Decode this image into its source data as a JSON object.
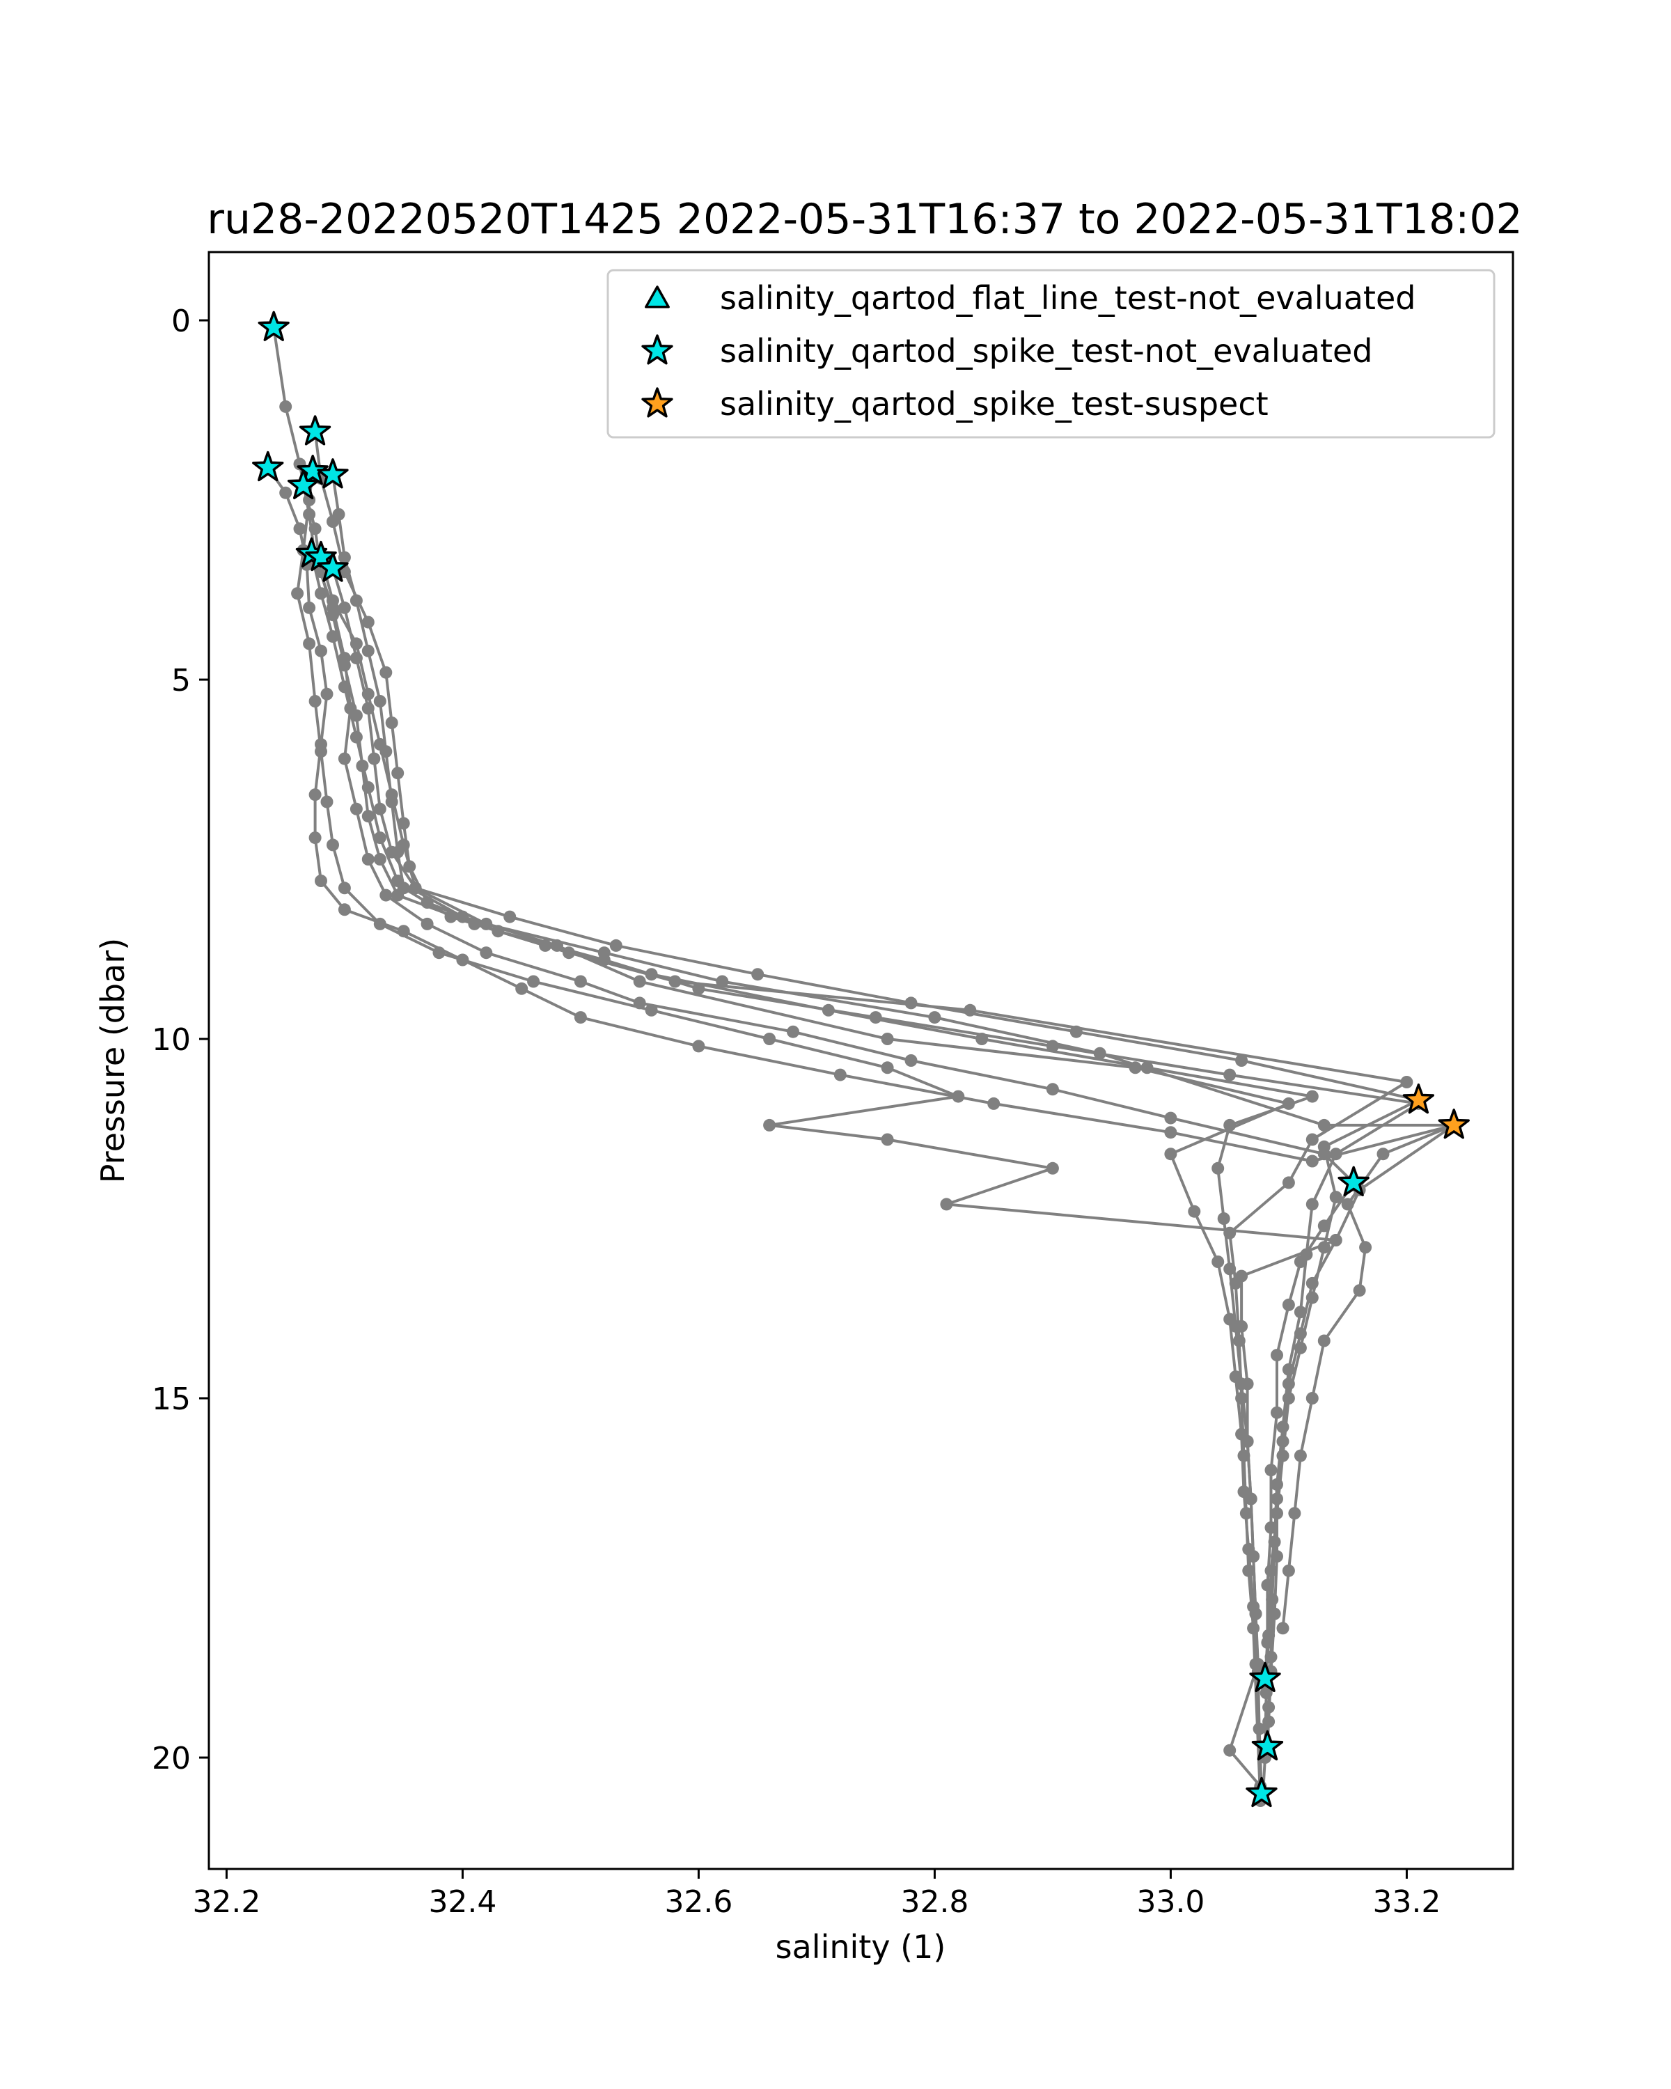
{
  "chart_data": {
    "type": "line",
    "title": "ru28-20220520T1425 2022-05-31T16:37 to 2022-05-31T18:02",
    "xlabel": "salinity (1)",
    "ylabel": "Pressure (dbar)",
    "xlim": [
      32.185,
      33.29
    ],
    "ylim": [
      21.55,
      -0.95
    ],
    "y_inverted": true,
    "xticks": [
      32.2,
      32.4,
      32.6,
      32.8,
      33.0,
      33.2
    ],
    "xtick_labels": [
      "32.2",
      "32.4",
      "32.6",
      "32.8",
      "33.0",
      "33.2"
    ],
    "yticks": [
      0,
      5,
      10,
      15,
      20
    ],
    "ytick_labels": [
      "0",
      "5",
      "10",
      "15",
      "20"
    ],
    "grid": false,
    "legend_position": "top-right",
    "line_color": "#808080",
    "series": [
      {
        "points": [
          [
            32.24,
            0.1
          ],
          [
            32.25,
            1.2
          ],
          [
            32.262,
            2.0
          ],
          [
            32.27,
            2.7
          ],
          [
            32.275,
            3.3
          ],
          [
            32.29,
            4.0
          ],
          [
            32.3,
            4.7
          ],
          [
            32.305,
            5.4
          ],
          [
            32.3,
            6.1
          ],
          [
            32.31,
            6.8
          ],
          [
            32.32,
            7.5
          ],
          [
            32.335,
            8.0
          ],
          [
            32.37,
            8.4
          ],
          [
            32.42,
            8.8
          ],
          [
            32.5,
            9.2
          ],
          [
            32.55,
            9.5
          ],
          [
            32.68,
            9.9
          ],
          [
            32.78,
            10.3
          ],
          [
            32.9,
            10.7
          ],
          [
            33.0,
            11.1
          ],
          [
            33.13,
            11.6
          ],
          [
            33.155,
            12.0
          ],
          [
            33.13,
            12.6
          ],
          [
            33.11,
            13.1
          ],
          [
            33.1,
            13.7
          ],
          [
            33.09,
            14.4
          ],
          [
            33.09,
            15.2
          ],
          [
            33.085,
            16.0
          ],
          [
            33.085,
            16.8
          ],
          [
            33.082,
            17.6
          ],
          [
            33.082,
            18.4
          ],
          [
            33.08,
            18.9
          ]
        ]
      },
      {
        "points": [
          [
            32.235,
            2.05
          ],
          [
            32.25,
            2.4
          ],
          [
            32.262,
            2.9
          ],
          [
            32.268,
            3.4
          ],
          [
            32.27,
            4.0
          ],
          [
            32.28,
            4.6
          ],
          [
            32.285,
            5.2
          ],
          [
            32.28,
            5.9
          ],
          [
            32.275,
            6.6
          ],
          [
            32.275,
            7.2
          ],
          [
            32.28,
            7.8
          ],
          [
            32.3,
            8.2
          ],
          [
            32.35,
            8.5
          ],
          [
            32.4,
            8.9
          ],
          [
            32.45,
            9.3
          ],
          [
            32.5,
            9.7
          ],
          [
            32.6,
            10.1
          ],
          [
            32.72,
            10.5
          ],
          [
            32.85,
            10.9
          ],
          [
            33.0,
            11.3
          ],
          [
            33.12,
            11.7
          ],
          [
            33.24,
            11.2
          ],
          [
            33.16,
            12.1
          ],
          [
            33.14,
            12.8
          ],
          [
            33.12,
            13.4
          ],
          [
            33.11,
            14.1
          ],
          [
            33.1,
            14.8
          ],
          [
            33.095,
            15.6
          ],
          [
            33.09,
            16.4
          ],
          [
            33.09,
            17.2
          ],
          [
            33.088,
            18.0
          ],
          [
            33.085,
            18.8
          ],
          [
            33.083,
            19.5
          ],
          [
            33.082,
            19.85
          ]
        ]
      },
      {
        "points": [
          [
            32.275,
            1.55
          ],
          [
            32.28,
            2.2
          ],
          [
            32.29,
            2.8
          ],
          [
            32.3,
            3.5
          ],
          [
            32.32,
            4.2
          ],
          [
            32.335,
            4.9
          ],
          [
            32.34,
            5.6
          ],
          [
            32.345,
            6.3
          ],
          [
            32.35,
            7.0
          ],
          [
            32.355,
            7.6
          ],
          [
            32.37,
            8.1
          ],
          [
            32.43,
            8.5
          ],
          [
            32.52,
            8.9
          ],
          [
            32.6,
            9.3
          ],
          [
            32.75,
            9.7
          ],
          [
            32.9,
            10.1
          ],
          [
            33.05,
            10.5
          ],
          [
            33.21,
            10.9
          ],
          [
            33.14,
            11.6
          ],
          [
            33.12,
            12.3
          ],
          [
            33.115,
            13.0
          ],
          [
            33.11,
            13.8
          ],
          [
            33.1,
            14.6
          ],
          [
            33.095,
            15.4
          ],
          [
            33.09,
            16.2
          ],
          [
            33.088,
            17.0
          ],
          [
            33.086,
            17.8
          ],
          [
            33.085,
            18.6
          ],
          [
            33.083,
            19.3
          ],
          [
            33.08,
            20.0
          ],
          [
            33.078,
            20.55
          ]
        ]
      },
      {
        "points": [
          [
            32.273,
            2.1
          ],
          [
            32.27,
            2.5
          ],
          [
            32.265,
            3.2
          ],
          [
            32.26,
            3.8
          ],
          [
            32.27,
            4.5
          ],
          [
            32.275,
            5.3
          ],
          [
            32.28,
            6.0
          ],
          [
            32.285,
            6.7
          ],
          [
            32.29,
            7.3
          ],
          [
            32.3,
            7.9
          ],
          [
            32.33,
            8.4
          ],
          [
            32.38,
            8.8
          ],
          [
            32.46,
            9.2
          ],
          [
            32.56,
            9.6
          ],
          [
            32.66,
            10.0
          ],
          [
            32.76,
            10.4
          ],
          [
            32.82,
            10.8
          ],
          [
            32.66,
            11.2
          ],
          [
            32.76,
            11.4
          ],
          [
            32.9,
            11.8
          ],
          [
            32.81,
            12.3
          ],
          [
            33.14,
            12.8
          ],
          [
            33.06,
            13.3
          ],
          [
            33.06,
            14.0
          ],
          [
            33.065,
            14.8
          ],
          [
            33.065,
            15.6
          ],
          [
            33.068,
            16.4
          ],
          [
            33.07,
            17.2
          ],
          [
            33.072,
            18.0
          ],
          [
            33.074,
            18.8
          ],
          [
            33.075,
            19.6
          ],
          [
            33.077,
            20.5
          ]
        ]
      },
      {
        "points": [
          [
            32.29,
            2.15
          ],
          [
            32.295,
            2.7
          ],
          [
            32.3,
            3.3
          ],
          [
            32.31,
            3.9
          ],
          [
            32.32,
            4.6
          ],
          [
            32.33,
            5.3
          ],
          [
            32.335,
            6.0
          ],
          [
            32.34,
            6.7
          ],
          [
            32.345,
            7.4
          ],
          [
            32.35,
            7.9
          ],
          [
            32.39,
            8.3
          ],
          [
            32.47,
            8.7
          ],
          [
            32.56,
            9.1
          ],
          [
            32.71,
            9.6
          ],
          [
            32.84,
            10.0
          ],
          [
            32.98,
            10.4
          ],
          [
            33.12,
            10.8
          ],
          [
            33.05,
            11.2
          ],
          [
            33.04,
            11.8
          ],
          [
            33.045,
            12.5
          ],
          [
            33.05,
            13.2
          ],
          [
            33.055,
            14.0
          ],
          [
            33.06,
            14.8
          ],
          [
            33.065,
            15.6
          ],
          [
            33.068,
            16.4
          ],
          [
            33.07,
            17.2
          ],
          [
            33.072,
            18.0
          ],
          [
            33.074,
            18.7
          ],
          [
            33.05,
            19.9
          ],
          [
            33.076,
            20.4
          ]
        ]
      },
      {
        "points": [
          [
            32.265,
            2.3
          ],
          [
            32.275,
            2.9
          ],
          [
            32.28,
            3.5
          ],
          [
            32.29,
            4.1
          ],
          [
            32.3,
            4.8
          ],
          [
            32.31,
            5.5
          ],
          [
            32.315,
            6.2
          ],
          [
            32.32,
            6.9
          ],
          [
            32.33,
            7.5
          ],
          [
            32.345,
            8.0
          ],
          [
            32.41,
            8.4
          ],
          [
            32.49,
            8.8
          ],
          [
            32.58,
            9.2
          ],
          [
            32.83,
            9.6
          ],
          [
            33.2,
            10.6
          ],
          [
            33.12,
            11.4
          ],
          [
            33.1,
            12.0
          ],
          [
            33.05,
            12.7
          ],
          [
            33.055,
            13.4
          ],
          [
            33.058,
            14.2
          ],
          [
            33.06,
            15.0
          ],
          [
            33.062,
            15.8
          ],
          [
            33.064,
            16.6
          ],
          [
            33.066,
            17.4
          ],
          [
            33.07,
            18.2
          ],
          [
            33.076,
            20.6
          ]
        ]
      },
      {
        "points": [
          [
            32.272,
            3.25
          ],
          [
            32.28,
            3.8
          ],
          [
            32.29,
            4.4
          ],
          [
            32.3,
            5.1
          ],
          [
            32.31,
            5.8
          ],
          [
            32.32,
            6.5
          ],
          [
            32.33,
            7.2
          ],
          [
            32.345,
            7.8
          ],
          [
            32.4,
            8.3
          ],
          [
            32.48,
            8.7
          ],
          [
            32.55,
            9.2
          ],
          [
            32.76,
            10.0
          ],
          [
            32.97,
            10.4
          ],
          [
            33.1,
            10.9
          ],
          [
            33.0,
            11.6
          ],
          [
            33.02,
            12.4
          ],
          [
            33.04,
            13.1
          ],
          [
            33.05,
            13.9
          ],
          [
            33.055,
            14.7
          ],
          [
            33.06,
            15.5
          ],
          [
            33.062,
            16.3
          ],
          [
            33.066,
            17.1
          ],
          [
            33.07,
            17.9
          ],
          [
            33.072,
            18.7
          ]
        ]
      },
      {
        "points": [
          [
            32.28,
            3.3
          ],
          [
            32.29,
            3.9
          ],
          [
            32.31,
            4.5
          ],
          [
            32.32,
            5.2
          ],
          [
            32.33,
            5.9
          ],
          [
            32.34,
            6.6
          ],
          [
            32.35,
            7.3
          ],
          [
            32.36,
            7.9
          ],
          [
            32.42,
            8.4
          ],
          [
            32.52,
            8.8
          ],
          [
            32.62,
            9.2
          ],
          [
            32.8,
            9.7
          ],
          [
            32.94,
            10.2
          ],
          [
            33.13,
            11.2
          ],
          [
            33.24,
            11.2
          ],
          [
            33.18,
            11.6
          ],
          [
            33.15,
            12.3
          ],
          [
            33.165,
            12.9
          ],
          [
            33.16,
            13.5
          ],
          [
            33.13,
            14.2
          ],
          [
            33.12,
            15.0
          ],
          [
            33.11,
            15.8
          ],
          [
            33.105,
            16.6
          ],
          [
            33.1,
            17.4
          ],
          [
            33.095,
            18.2
          ]
        ]
      },
      {
        "points": [
          [
            32.29,
            3.45
          ],
          [
            32.3,
            4.0
          ],
          [
            32.31,
            4.7
          ],
          [
            32.32,
            5.4
          ],
          [
            32.325,
            6.1
          ],
          [
            32.33,
            6.8
          ],
          [
            32.34,
            7.4
          ],
          [
            32.36,
            7.9
          ],
          [
            32.44,
            8.3
          ],
          [
            32.53,
            8.7
          ],
          [
            32.65,
            9.1
          ],
          [
            32.78,
            9.5
          ],
          [
            32.92,
            9.9
          ],
          [
            33.06,
            10.3
          ],
          [
            33.21,
            10.85
          ],
          [
            33.13,
            11.5
          ],
          [
            33.14,
            12.2
          ],
          [
            33.13,
            12.9
          ],
          [
            33.12,
            13.6
          ],
          [
            33.11,
            14.3
          ],
          [
            33.1,
            15.0
          ],
          [
            33.095,
            15.8
          ],
          [
            33.09,
            16.6
          ],
          [
            33.085,
            17.4
          ],
          [
            33.083,
            18.3
          ],
          [
            33.081,
            19.1
          ],
          [
            33.08,
            19.85
          ]
        ]
      }
    ],
    "markers": [
      {
        "label": "salinity_qartod_spike_test-not_evaluated",
        "color": "#00e5e5",
        "points": [
          [
            32.24,
            0.1
          ],
          [
            32.275,
            1.55
          ],
          [
            32.235,
            2.05
          ],
          [
            32.273,
            2.1
          ],
          [
            32.29,
            2.15
          ],
          [
            32.265,
            2.3
          ],
          [
            32.272,
            3.25
          ],
          [
            32.28,
            3.3
          ],
          [
            32.29,
            3.45
          ],
          [
            33.155,
            12.0
          ],
          [
            33.08,
            18.9
          ],
          [
            33.082,
            19.85
          ],
          [
            33.077,
            20.5
          ]
        ]
      },
      {
        "label": "salinity_qartod_spike_test-suspect",
        "color": "#ffa01e",
        "points": [
          [
            33.21,
            10.85
          ],
          [
            33.24,
            11.2
          ]
        ]
      }
    ],
    "legend": [
      {
        "label": "salinity_qartod_flat_line_test-not_evaluated",
        "marker": "triangle",
        "color": "#00e5e5"
      },
      {
        "label": "salinity_qartod_spike_test-not_evaluated",
        "marker": "star",
        "color": "#00e5e5"
      },
      {
        "label": "salinity_qartod_spike_test-suspect",
        "marker": "star",
        "color": "#ffa01e"
      }
    ]
  }
}
